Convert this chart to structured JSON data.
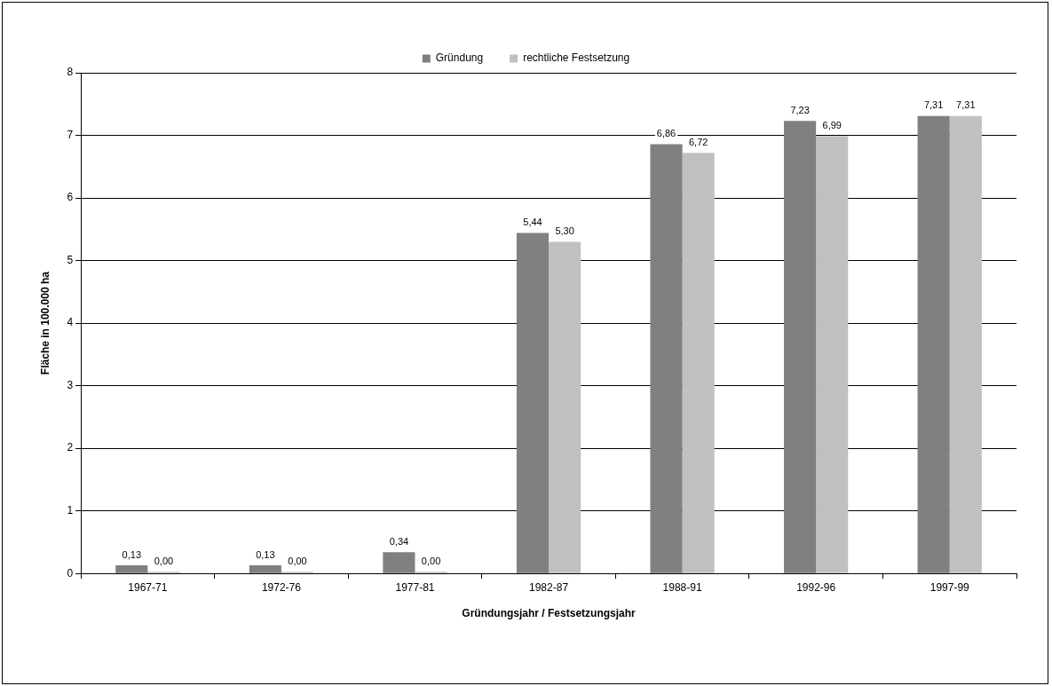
{
  "chart_data": {
    "type": "bar",
    "xlabel": "Gründungsjahr / Festsetzungsjahr",
    "ylabel": "Fläche in 100.000 ha",
    "categories": [
      "1967-71",
      "1972-76",
      "1977-81",
      "1982-87",
      "1988-91",
      "1992-96",
      "1997-99"
    ],
    "series": [
      {
        "name": "Gründung",
        "color": "#808080",
        "values": [
          0.13,
          0.13,
          0.34,
          5.44,
          6.86,
          7.23,
          7.31
        ],
        "value_labels": [
          "0,13",
          "0,13",
          "0,34",
          "5,44",
          "6,86",
          "7,23",
          "7,31"
        ]
      },
      {
        "name": "rechtliche Festsetzung",
        "color": "#c0c0c0",
        "values": [
          0,
          0,
          0,
          5.3,
          6.72,
          6.99,
          7.31
        ],
        "value_labels": [
          "0,00",
          "0,00",
          "0,00",
          "5,30",
          "6,72",
          "6,99",
          "7,31"
        ]
      }
    ],
    "ylim": [
      0,
      8
    ],
    "yticks": [
      0,
      1,
      2,
      3,
      4,
      5,
      6,
      7,
      8
    ],
    "grid": "y",
    "legend": "top"
  }
}
